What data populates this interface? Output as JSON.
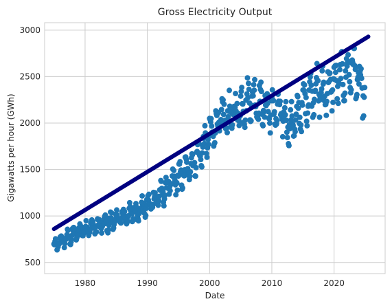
{
  "chart_data": {
    "type": "scatter",
    "title": "Gross Electricity Output",
    "xlabel": "Date",
    "ylabel": "Gigawatts per hour (GWh)",
    "xlim": [
      1973.5,
      2028.2
    ],
    "ylim": [
      380,
      3080
    ],
    "xticks": [
      1980,
      1990,
      2000,
      2010,
      2020
    ],
    "yticks": [
      500,
      1000,
      1500,
      2000,
      2500,
      3000
    ],
    "grid": true,
    "colors": {
      "points": "#1f77b4",
      "trend": "#000080"
    },
    "trend_line": {
      "x": [
        1975.0,
        2025.5
      ],
      "y": [
        860,
        2930
      ]
    },
    "anchors": [
      [
        1975.0,
        660
      ],
      [
        1976.0,
        720
      ],
      [
        1977.0,
        760
      ],
      [
        1978.0,
        790
      ],
      [
        1979.0,
        830
      ],
      [
        1980.0,
        870
      ],
      [
        1981.0,
        880
      ],
      [
        1982.0,
        890
      ],
      [
        1983.0,
        910
      ],
      [
        1984.0,
        940
      ],
      [
        1985.0,
        960
      ],
      [
        1986.0,
        990
      ],
      [
        1987.0,
        1010
      ],
      [
        1988.0,
        1040
      ],
      [
        1989.0,
        1080
      ],
      [
        1990.0,
        1110
      ],
      [
        1991.0,
        1170
      ],
      [
        1992.0,
        1220
      ],
      [
        1993.0,
        1290
      ],
      [
        1994.0,
        1350
      ],
      [
        1995.0,
        1410
      ],
      [
        1996.0,
        1470
      ],
      [
        1997.0,
        1550
      ],
      [
        1998.0,
        1630
      ],
      [
        1999.0,
        1730
      ],
      [
        2000.0,
        1870
      ],
      [
        2001.0,
        1970
      ],
      [
        2002.0,
        2060
      ],
      [
        2003.0,
        2080
      ],
      [
        2004.0,
        2100
      ],
      [
        2005.0,
        2180
      ],
      [
        2006.0,
        2230
      ],
      [
        2007.0,
        2280
      ],
      [
        2008.0,
        2210
      ],
      [
        2009.0,
        2160
      ],
      [
        2010.0,
        2130
      ],
      [
        2011.0,
        2110
      ],
      [
        2012.0,
        2050
      ],
      [
        2013.0,
        1970
      ],
      [
        2014.0,
        2050
      ],
      [
        2015.0,
        2190
      ],
      [
        2016.0,
        2300
      ],
      [
        2017.0,
        2380
      ],
      [
        2018.0,
        2330
      ],
      [
        2019.0,
        2360
      ],
      [
        2020.0,
        2420
      ],
      [
        2021.0,
        2460
      ],
      [
        2022.0,
        2530
      ],
      [
        2023.0,
        2600
      ],
      [
        2024.0,
        2420
      ],
      [
        2025.0,
        2280
      ]
    ]
  }
}
